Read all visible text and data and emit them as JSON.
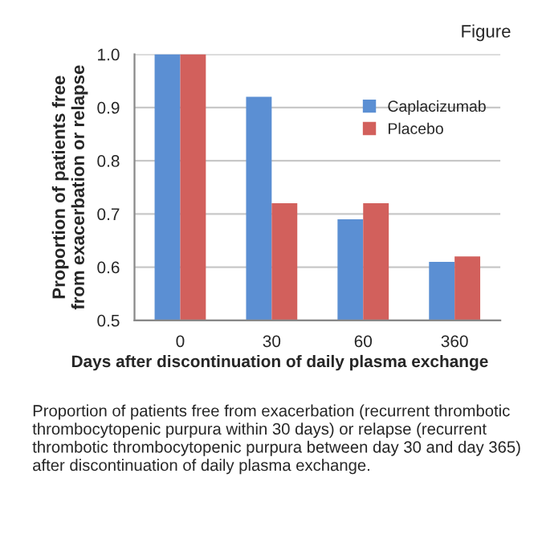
{
  "chart_data": {
    "type": "bar",
    "title": "Figure",
    "xlabel": "Days after discontinuation of daily plasma exchange",
    "ylabel": "Proportion of patients free\nfrom exacerbation or relapse",
    "categories": [
      "0",
      "30",
      "60",
      "360"
    ],
    "series": [
      {
        "name": "Caplacizumab",
        "color": "#5b8fd3",
        "values": [
          1.0,
          0.92,
          0.69,
          0.61
        ]
      },
      {
        "name": "Placebo",
        "color": "#d2605c",
        "values": [
          1.0,
          0.72,
          0.72,
          0.62
        ]
      }
    ],
    "ylim": [
      0.5,
      1.0
    ],
    "yticks": [
      {
        "value": 0.5,
        "label": "0.5"
      },
      {
        "value": 0.6,
        "label": "0.6"
      },
      {
        "value": 0.7,
        "label": "0.7"
      },
      {
        "value": 0.8,
        "label": "0.8"
      },
      {
        "value": 0.9,
        "label": "0.9"
      },
      {
        "value": 1.0,
        "label": "1.0"
      }
    ],
    "grid": "y",
    "legend": "top right",
    "annotations": [
      "Proportion of patients free from exacerbation (recurrent thrombotic thrombocytopenic purpura within 30 days) or relapse (recurrent thrombotic thrombocytopenic purpura between day 30 and day 365) after discontinuation of daily plasma exchange."
    ]
  }
}
